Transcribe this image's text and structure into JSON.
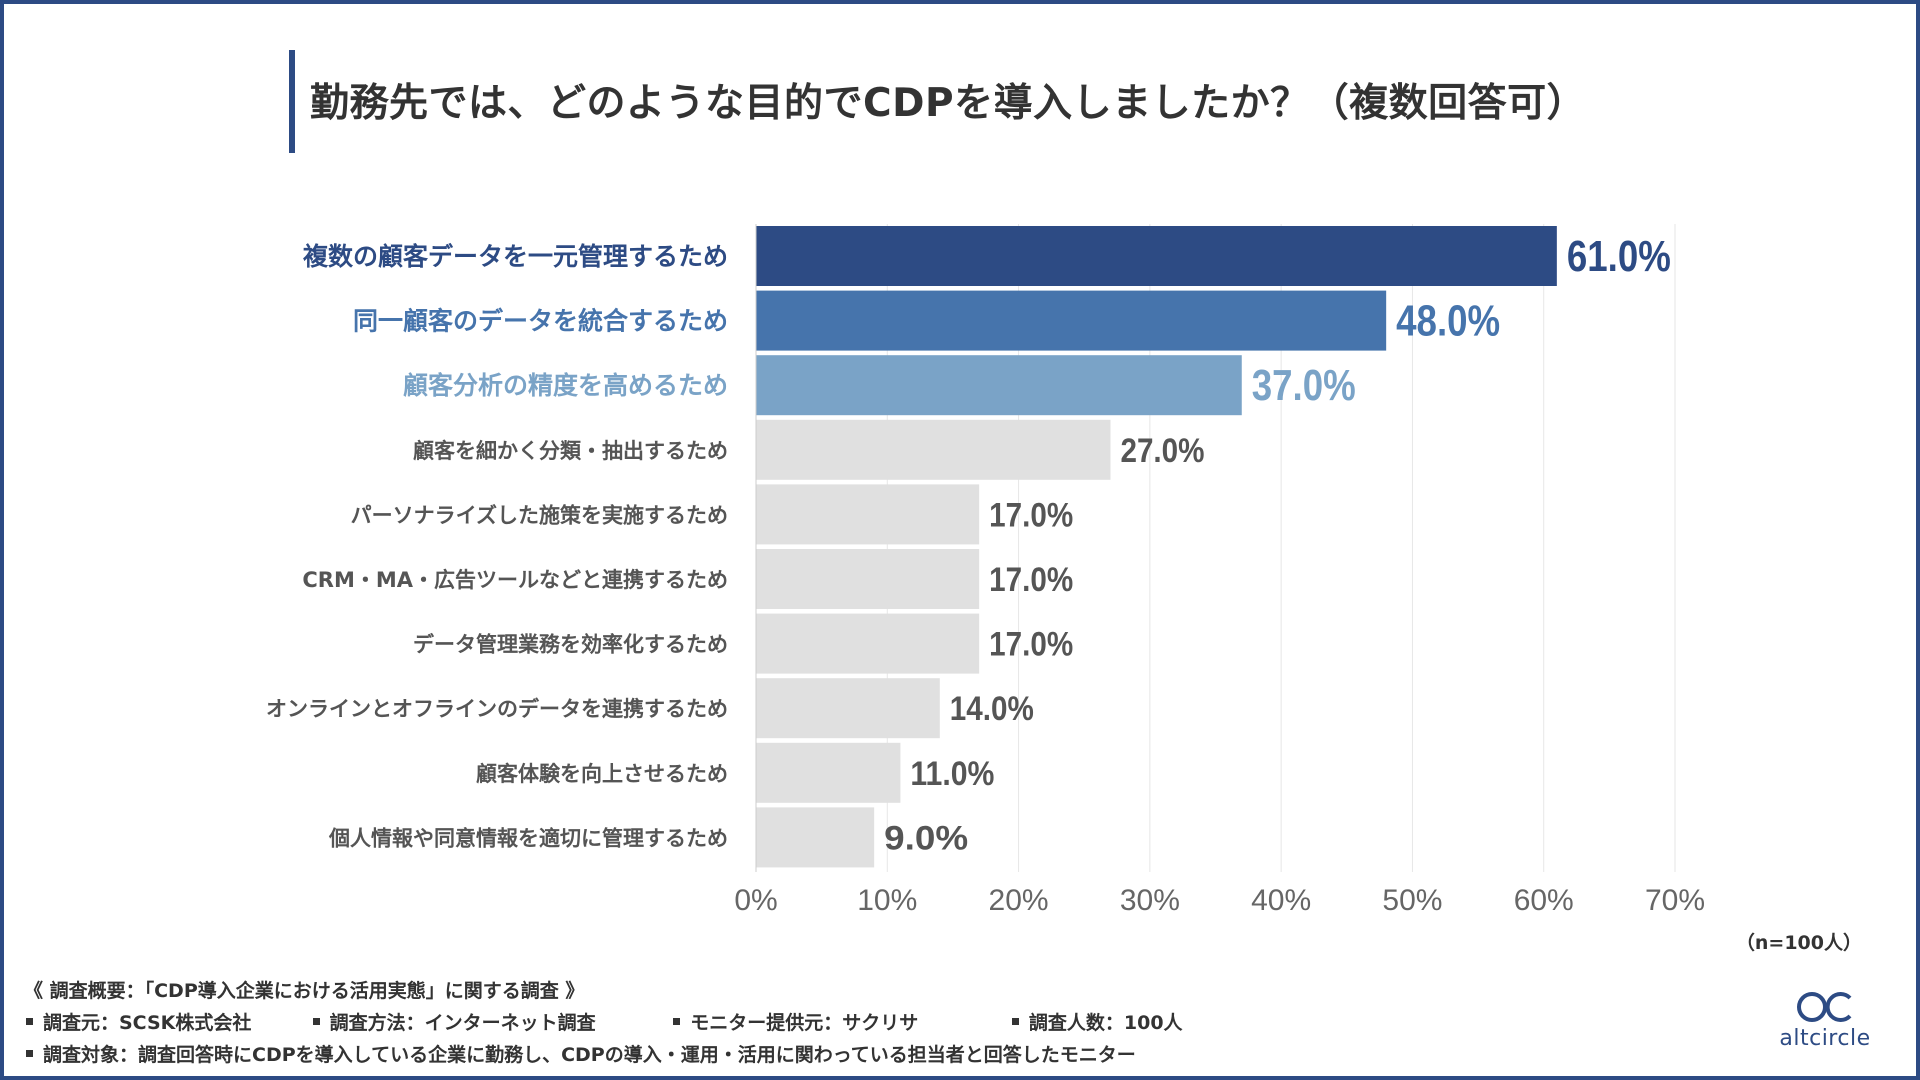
{
  "title": "勤務先では、どのような目的でCDPを導入しましたか？（複数回答可）",
  "sample_note": "（n=100人）",
  "footer": {
    "summary": "《 調査概要：「CDP導入企業における活用実態」に関する調査 》",
    "items": [
      "調査元：SCSK株式会社",
      "調査方法：インターネット調査",
      "モニター提供元：サクリサ",
      "調査人数：100人"
    ],
    "target": "調査対象：調査回答時にCDPを導入している企業に勤務し、CDPの導入・運用・活用に関わっている担当者と回答したモニター"
  },
  "logo": {
    "text": "altcircle",
    "icon": "altcircle-logo-icon"
  },
  "colors": {
    "frame": "#2d4b84",
    "bar_top1": "#2d4b84",
    "bar_top2": "#4674ac",
    "bar_top3": "#7aa3c7",
    "bar_other": "#e0e0e0",
    "label_other": "#555555",
    "value_other": "#555555"
  },
  "chart_data": {
    "type": "bar",
    "orientation": "horizontal",
    "categories": [
      "複数の顧客データを一元管理するため",
      "同一顧客のデータを統合するため",
      "顧客分析の精度を高めるため",
      "顧客を細かく分類・抽出するため",
      "パーソナライズした施策を実施するため",
      "CRM・MA・広告ツールなどと連携するため",
      "データ管理業務を効率化するため",
      "オンラインとオフラインのデータを連携するため",
      "顧客体験を向上させるため",
      "個人情報や同意情報を適切に管理するため"
    ],
    "values": [
      61.0,
      48.0,
      37.0,
      27.0,
      17.0,
      17.0,
      17.0,
      14.0,
      11.0,
      9.0
    ],
    "value_labels": [
      "61.0%",
      "48.0%",
      "37.0%",
      "27.0%",
      "17.0%",
      "17.0%",
      "17.0%",
      "14.0%",
      "11.0%",
      "9.0%"
    ],
    "xlim": [
      0,
      70
    ],
    "xticks": [
      "0%",
      "10%",
      "20%",
      "30%",
      "40%",
      "50%",
      "60%",
      "70%"
    ],
    "grid": true,
    "xlabel": "",
    "ylabel": ""
  }
}
